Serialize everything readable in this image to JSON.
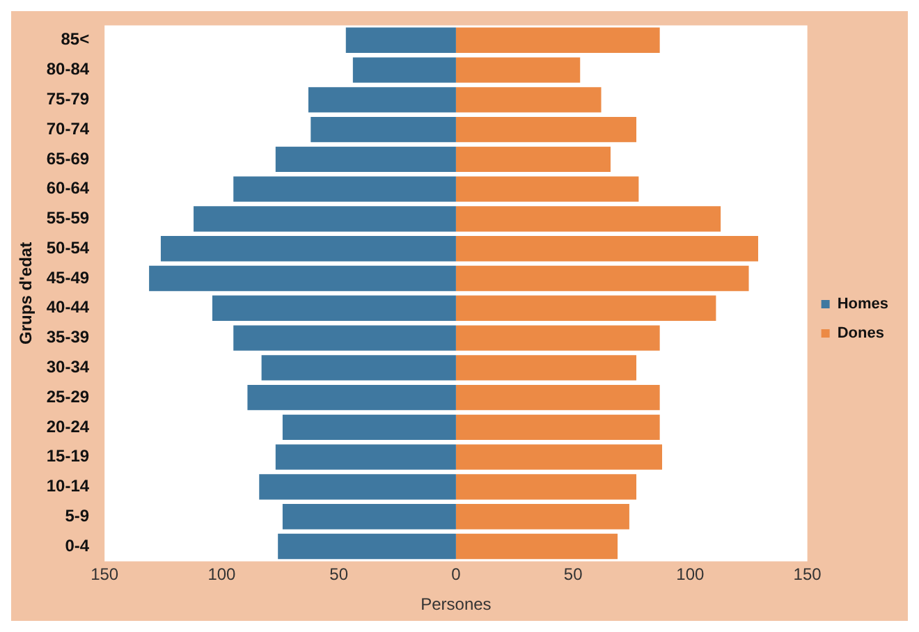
{
  "chart_data": {
    "type": "bar",
    "orientation": "horizontal",
    "stacked": true,
    "xlabel": "Persones",
    "ylabel": "Grups d'edat",
    "categories": [
      "85<",
      "80-84",
      "75-79",
      "70-74",
      "65-69",
      "60-64",
      "55-59",
      "50-54",
      "45-49",
      "40-44",
      "35-39",
      "30-34",
      "25-29",
      "20-24",
      "15-19",
      "10-14",
      "5-9",
      "0-4"
    ],
    "series": [
      {
        "name": "Homes",
        "color": "#3f78a0",
        "values": [
          -47,
          -44,
          -63,
          -62,
          -77,
          -95,
          -112,
          -126,
          -131,
          -104,
          -95,
          -83,
          -89,
          -74,
          -77,
          -84,
          -74,
          -76
        ]
      },
      {
        "name": "Dones",
        "color": "#ec8a45",
        "values": [
          87,
          53,
          62,
          77,
          66,
          78,
          113,
          129,
          125,
          111,
          87,
          77,
          87,
          87,
          88,
          77,
          74,
          69
        ]
      }
    ],
    "xlim": [
      -150,
      150
    ],
    "xticks": [
      {
        "value": -150,
        "label": "150"
      },
      {
        "value": -100,
        "label": "100"
      },
      {
        "value": -50,
        "label": "50"
      },
      0,
      50,
      100,
      150
    ],
    "grid": false,
    "legend": "right"
  }
}
